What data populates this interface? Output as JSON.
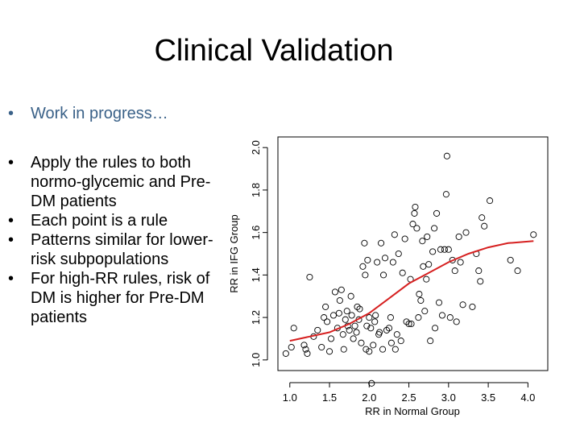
{
  "slide": {
    "title": "Clinical Validation",
    "bullet_progress": "Work in progress…",
    "bullets": [
      "Apply the rules to both normo-glycemic and Pre-DM patients",
      "Each point is a rule",
      "Patterns similar for lower-risk subpopulations",
      "For high-RR rules, risk of DM is higher for Pre-DM patients"
    ],
    "bullet_glyph": "•"
  },
  "chart_data": {
    "type": "scatter",
    "title": "",
    "xlabel": "RR in Normal Group",
    "ylabel": "RR in IFG Group",
    "xlim": [
      0.85,
      4.25
    ],
    "ylim": [
      0.95,
      2.05
    ],
    "xticks": [
      "1.0",
      "1.5",
      "2.0",
      "2.5",
      "3.0",
      "3.5",
      "4.0"
    ],
    "yticks": [
      "1.0",
      "1.2",
      "1.4",
      "1.6",
      "1.8",
      "2.0"
    ],
    "point_color": "#000000",
    "curve_color": "#d62020",
    "points": [
      [
        0.95,
        1.03
      ],
      [
        1.02,
        1.06
      ],
      [
        1.05,
        1.15
      ],
      [
        1.18,
        1.07
      ],
      [
        1.2,
        1.05
      ],
      [
        1.22,
        1.03
      ],
      [
        1.25,
        1.39
      ],
      [
        1.3,
        1.11
      ],
      [
        1.35,
        1.14
      ],
      [
        1.4,
        1.06
      ],
      [
        1.43,
        1.2
      ],
      [
        1.45,
        1.25
      ],
      [
        1.47,
        1.18
      ],
      [
        1.5,
        1.04
      ],
      [
        1.52,
        1.1
      ],
      [
        1.55,
        1.21
      ],
      [
        1.57,
        1.32
      ],
      [
        1.6,
        1.15
      ],
      [
        1.62,
        1.22
      ],
      [
        1.63,
        1.28
      ],
      [
        1.65,
        1.33
      ],
      [
        1.67,
        1.12
      ],
      [
        1.68,
        1.05
      ],
      [
        1.7,
        1.19
      ],
      [
        1.72,
        1.23
      ],
      [
        1.73,
        1.16
      ],
      [
        1.75,
        1.14
      ],
      [
        1.77,
        1.3
      ],
      [
        1.78,
        1.21
      ],
      [
        1.8,
        1.1
      ],
      [
        1.82,
        1.16
      ],
      [
        1.84,
        1.13
      ],
      [
        1.85,
        1.25
      ],
      [
        1.87,
        1.19
      ],
      [
        1.88,
        1.24
      ],
      [
        1.9,
        1.08
      ],
      [
        1.92,
        1.44
      ],
      [
        1.94,
        1.55
      ],
      [
        1.95,
        1.4
      ],
      [
        1.96,
        1.05
      ],
      [
        1.97,
        1.16
      ],
      [
        1.98,
        1.47
      ],
      [
        2.0,
        1.04
      ],
      [
        2.0,
        1.2
      ],
      [
        2.02,
        1.15
      ],
      [
        2.03,
        0.89
      ],
      [
        2.05,
        1.07
      ],
      [
        2.07,
        1.18
      ],
      [
        2.08,
        1.21
      ],
      [
        2.1,
        1.46
      ],
      [
        2.12,
        1.12
      ],
      [
        2.13,
        1.13
      ],
      [
        2.15,
        1.55
      ],
      [
        2.17,
        1.05
      ],
      [
        2.18,
        1.4
      ],
      [
        2.2,
        1.48
      ],
      [
        2.22,
        1.14
      ],
      [
        2.25,
        1.15
      ],
      [
        2.27,
        1.2
      ],
      [
        2.28,
        1.08
      ],
      [
        2.3,
        1.46
      ],
      [
        2.32,
        1.59
      ],
      [
        2.33,
        1.05
      ],
      [
        2.35,
        1.12
      ],
      [
        2.37,
        1.5
      ],
      [
        2.4,
        1.09
      ],
      [
        2.42,
        1.41
      ],
      [
        2.45,
        1.57
      ],
      [
        2.47,
        1.18
      ],
      [
        2.5,
        1.17
      ],
      [
        2.52,
        1.38
      ],
      [
        2.53,
        1.17
      ],
      [
        2.55,
        1.64
      ],
      [
        2.57,
        1.69
      ],
      [
        2.58,
        1.72
      ],
      [
        2.6,
        1.62
      ],
      [
        2.62,
        1.2
      ],
      [
        2.63,
        1.31
      ],
      [
        2.65,
        1.28
      ],
      [
        2.67,
        1.56
      ],
      [
        2.68,
        1.44
      ],
      [
        2.7,
        1.23
      ],
      [
        2.72,
        1.38
      ],
      [
        2.73,
        1.58
      ],
      [
        2.75,
        1.45
      ],
      [
        2.77,
        1.09
      ],
      [
        2.8,
        1.51
      ],
      [
        2.82,
        1.62
      ],
      [
        2.83,
        1.15
      ],
      [
        2.85,
        1.69
      ],
      [
        2.88,
        1.27
      ],
      [
        2.9,
        1.52
      ],
      [
        2.92,
        1.21
      ],
      [
        2.95,
        1.52
      ],
      [
        2.97,
        1.78
      ],
      [
        2.98,
        1.96
      ],
      [
        3.0,
        1.52
      ],
      [
        3.02,
        1.2
      ],
      [
        3.05,
        1.47
      ],
      [
        3.08,
        1.42
      ],
      [
        3.1,
        1.18
      ],
      [
        3.13,
        1.58
      ],
      [
        3.15,
        1.46
      ],
      [
        3.18,
        1.26
      ],
      [
        3.22,
        1.6
      ],
      [
        3.3,
        1.25
      ],
      [
        3.35,
        1.5
      ],
      [
        3.38,
        1.42
      ],
      [
        3.4,
        1.37
      ],
      [
        3.42,
        1.67
      ],
      [
        3.45,
        1.63
      ],
      [
        3.52,
        1.75
      ],
      [
        3.78,
        1.47
      ],
      [
        3.87,
        1.42
      ],
      [
        4.07,
        1.59
      ]
    ],
    "smooth_curve": [
      [
        1.0,
        1.09
      ],
      [
        1.25,
        1.11
      ],
      [
        1.5,
        1.13
      ],
      [
        1.75,
        1.17
      ],
      [
        2.0,
        1.22
      ],
      [
        2.25,
        1.29
      ],
      [
        2.5,
        1.36
      ],
      [
        2.75,
        1.41
      ],
      [
        3.0,
        1.46
      ],
      [
        3.25,
        1.5
      ],
      [
        3.5,
        1.53
      ],
      [
        3.75,
        1.55
      ],
      [
        4.07,
        1.56
      ]
    ]
  }
}
